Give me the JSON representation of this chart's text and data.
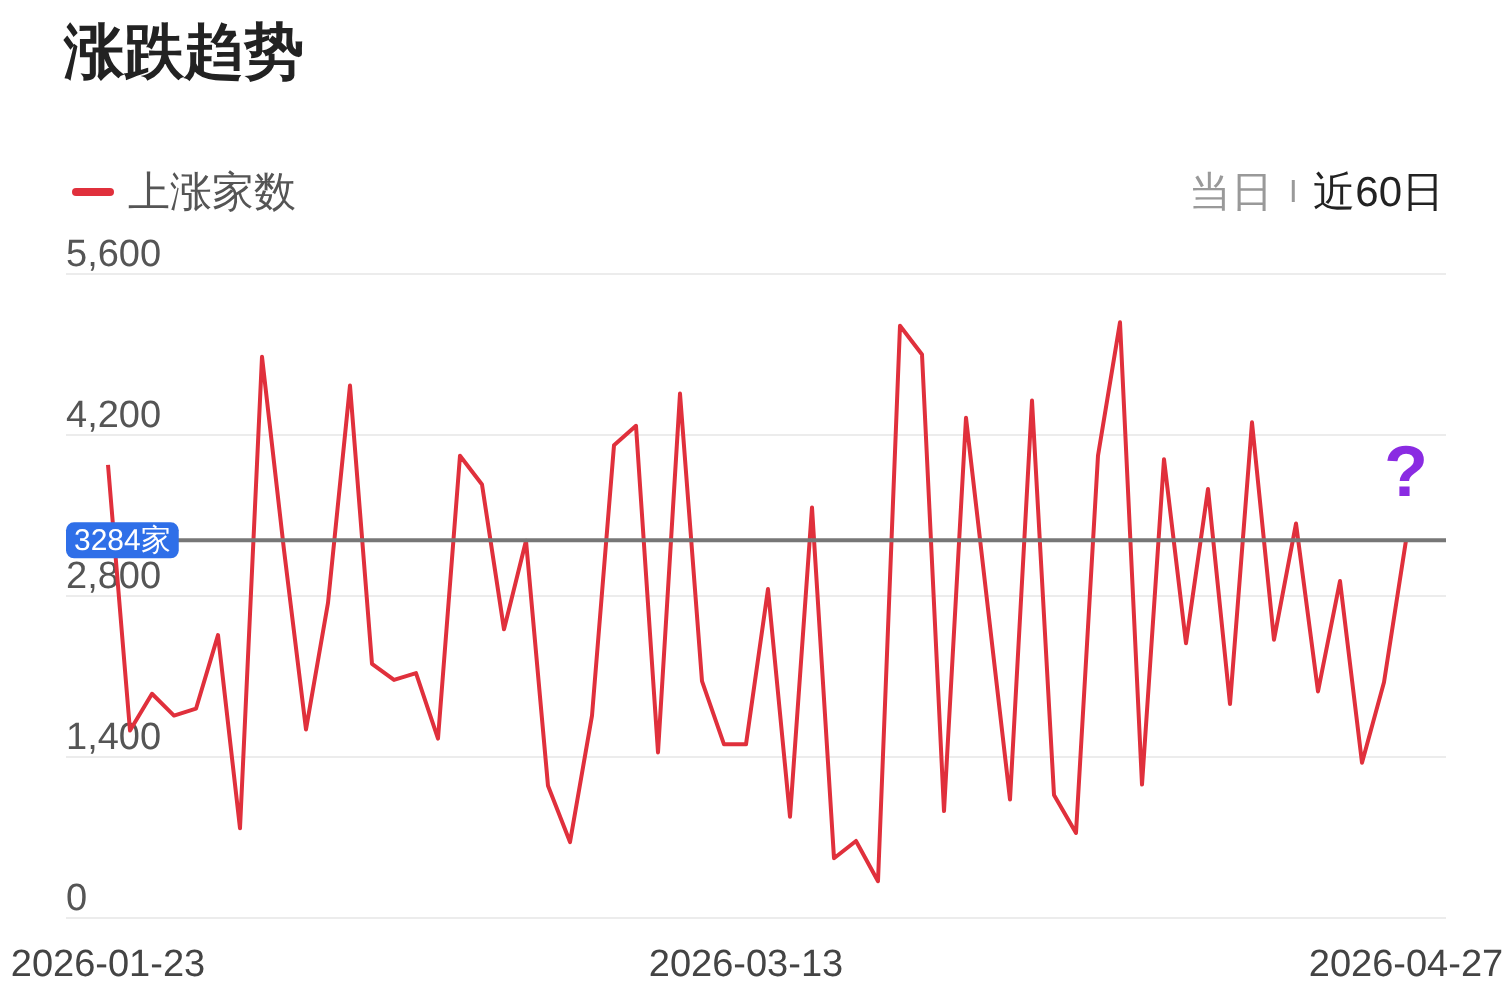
{
  "chart_data": {
    "type": "line",
    "title": "涨跌趋势",
    "categories": [
      "2026-01-23",
      null,
      null,
      null,
      null,
      null,
      null,
      null,
      null,
      null,
      null,
      null,
      null,
      null,
      null,
      null,
      null,
      null,
      null,
      null,
      null,
      null,
      null,
      null,
      null,
      null,
      null,
      null,
      null,
      "2026-03-13",
      null,
      null,
      null,
      null,
      null,
      null,
      null,
      null,
      null,
      null,
      null,
      null,
      null,
      null,
      null,
      null,
      null,
      null,
      null,
      null,
      null,
      null,
      null,
      null,
      null,
      null,
      null,
      null,
      null,
      "2026-04-27"
    ],
    "series": [
      {
        "name": "上涨家数",
        "color": "#e0303c",
        "values": [
          3940,
          1630,
          1950,
          1760,
          1820,
          2460,
          780,
          4880,
          3200,
          1640,
          2740,
          4630,
          2210,
          2070,
          2130,
          1560,
          4020,
          3770,
          2510,
          3280,
          1150,
          660,
          1760,
          4110,
          4280,
          1440,
          4560,
          2060,
          1510,
          1510,
          2860,
          880,
          3570,
          520,
          670,
          320,
          5150,
          4900,
          930,
          4350,
          2690,
          1030,
          4500,
          1070,
          740,
          4020,
          5180,
          1160,
          3990,
          2390,
          3730,
          1860,
          4310,
          2420,
          3430,
          1970,
          2930,
          1350,
          2050,
          3284
        ]
      }
    ],
    "ylim": [
      0,
      5600
    ],
    "yticks": [
      0,
      {
        "value": 1400,
        "label": "1,400"
      },
      {
        "value": 2800,
        "label": "2,800"
      },
      {
        "value": 4200,
        "label": "4,200"
      },
      {
        "value": 5600,
        "label": "5,600"
      }
    ],
    "grid": "y",
    "legend": "top left",
    "marker": "none",
    "line_style": "solid",
    "ref_lines": [
      {
        "axis": "y",
        "value": 3284,
        "label": "3284家",
        "color": "#777777"
      }
    ],
    "annotations": [
      "当日",
      "近60日",
      {
        "text": "?",
        "x": "2026-04-27",
        "y": 3284
      }
    ]
  }
}
